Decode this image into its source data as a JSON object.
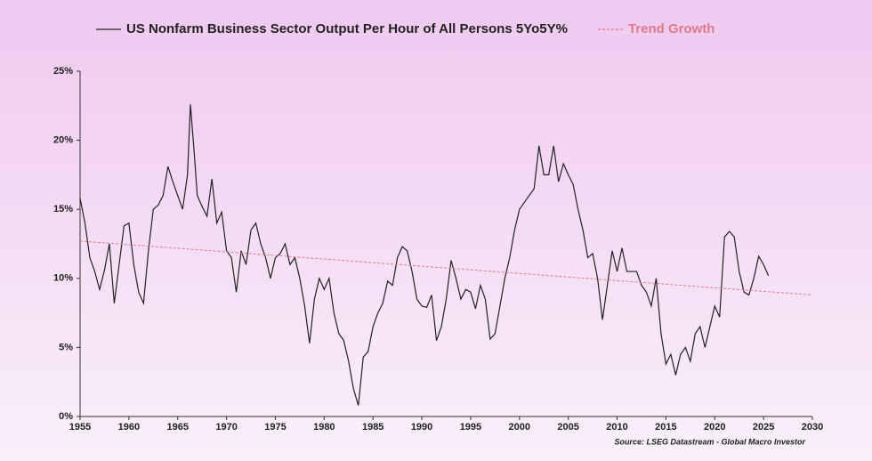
{
  "chart_data": {
    "type": "line",
    "series": [
      {
        "name": "US Nonfarm Business Sector Output Per Hour of All Persons 5Yo5Y%",
        "color": "#222222",
        "dashed": false,
        "x": [
          1955,
          1955.5,
          1956,
          1956.5,
          1957,
          1957.5,
          1958,
          1958.5,
          1959,
          1959.5,
          1960,
          1960.5,
          1961,
          1961.5,
          1962,
          1962.5,
          1963,
          1963.5,
          1964,
          1964.5,
          1965,
          1965.5,
          1966,
          1966.3,
          1966.7,
          1967,
          1967.5,
          1968,
          1968.5,
          1969,
          1969.5,
          1970,
          1970.5,
          1971,
          1971.5,
          1972,
          1972.5,
          1973,
          1973.5,
          1974,
          1974.5,
          1975,
          1975.5,
          1976,
          1976.5,
          1977,
          1977.5,
          1978,
          1978.5,
          1979,
          1979.5,
          1980,
          1980.5,
          1981,
          1981.5,
          1982,
          1982.5,
          1983,
          1983.5,
          1984,
          1984.5,
          1985,
          1985.5,
          1986,
          1986.5,
          1987,
          1987.5,
          1988,
          1988.5,
          1989,
          1989.5,
          1990,
          1990.5,
          1991,
          1991.5,
          1992,
          1992.5,
          1993,
          1993.5,
          1994,
          1994.5,
          1995,
          1995.5,
          1996,
          1996.5,
          1997,
          1997.5,
          1998,
          1998.5,
          1999,
          1999.5,
          2000,
          2000.5,
          2001,
          2001.5,
          2002,
          2002.5,
          2003,
          2003.5,
          2004,
          2004.5,
          2005,
          2005.5,
          2006,
          2006.5,
          2007,
          2007.5,
          2008,
          2008.5,
          2009,
          2009.5,
          2010,
          2010.5,
          2011,
          2011.5,
          2012,
          2012.5,
          2013,
          2013.5,
          2014,
          2014.5,
          2015,
          2015.5,
          2016,
          2016.5,
          2017,
          2017.5,
          2018,
          2018.5,
          2019,
          2019.5,
          2020,
          2020.5,
          2021,
          2021.5,
          2022,
          2022.5,
          2023,
          2023.5,
          2024,
          2024.5,
          2025,
          2025.5
        ],
        "values": [
          15.8,
          14,
          11.5,
          10.5,
          9.2,
          10.6,
          12.5,
          8.2,
          11,
          13.8,
          14,
          11,
          9,
          8.2,
          12,
          15,
          15.3,
          16,
          18.1,
          17,
          16,
          15,
          17.5,
          22.6,
          19,
          16,
          15.2,
          14.5,
          17.2,
          14,
          14.8,
          12,
          11.5,
          9,
          12,
          11,
          13.5,
          14,
          12.5,
          11.5,
          10,
          11.5,
          11.8,
          12.5,
          11,
          11.5,
          10,
          8,
          5.3,
          8.5,
          10,
          9.2,
          10,
          7.5,
          6,
          5.5,
          4,
          2,
          0.8,
          4.3,
          4.7,
          6.5,
          7.5,
          8.2,
          9.8,
          9.5,
          11.5,
          12.3,
          12,
          10.5,
          8.5,
          8,
          7.9,
          8.8,
          5.5,
          6.5,
          8.5,
          11.3,
          10,
          8.5,
          9.2,
          9,
          7.8,
          9.5,
          8.5,
          5.6,
          6,
          8,
          10,
          11.5,
          13.5,
          15,
          15.5,
          16,
          16.5,
          19.6,
          17.5,
          17.5,
          19.6,
          17,
          18.3,
          17.5,
          16.8,
          15,
          13.5,
          11.5,
          11.8,
          10,
          7,
          9.5,
          12,
          10.5,
          12.2,
          10.5,
          10.5,
          10.5,
          9.5,
          9,
          8,
          10,
          6,
          3.8,
          4.5,
          3,
          4.5,
          5,
          4,
          6,
          6.5,
          5,
          6.5,
          8,
          7.2,
          13,
          13.4,
          13,
          10.5,
          9,
          8.8,
          10,
          11.6,
          11,
          10.2
        ]
      },
      {
        "name": "Trend Growth",
        "color": "#e07a8a",
        "dashed": true,
        "x": [
          1955,
          2030
        ],
        "values": [
          12.7,
          8.8
        ]
      }
    ],
    "xlim": [
      1955,
      2030
    ],
    "xticks": [
      1955,
      1960,
      1965,
      1970,
      1975,
      1980,
      1985,
      1990,
      1995,
      2000,
      2005,
      2010,
      2015,
      2020,
      2025,
      2030
    ],
    "ylim": [
      0,
      25
    ],
    "yticks": [
      {
        "value": 0,
        "label": "0%"
      },
      {
        "value": 5,
        "label": "5%"
      },
      {
        "value": 10,
        "label": "10%"
      },
      {
        "value": 15,
        "label": "15%"
      },
      {
        "value": 20,
        "label": "20%"
      },
      {
        "value": 25,
        "label": "25%"
      }
    ],
    "source": "Source: LSEG Datastream - Global Macro Investor"
  }
}
